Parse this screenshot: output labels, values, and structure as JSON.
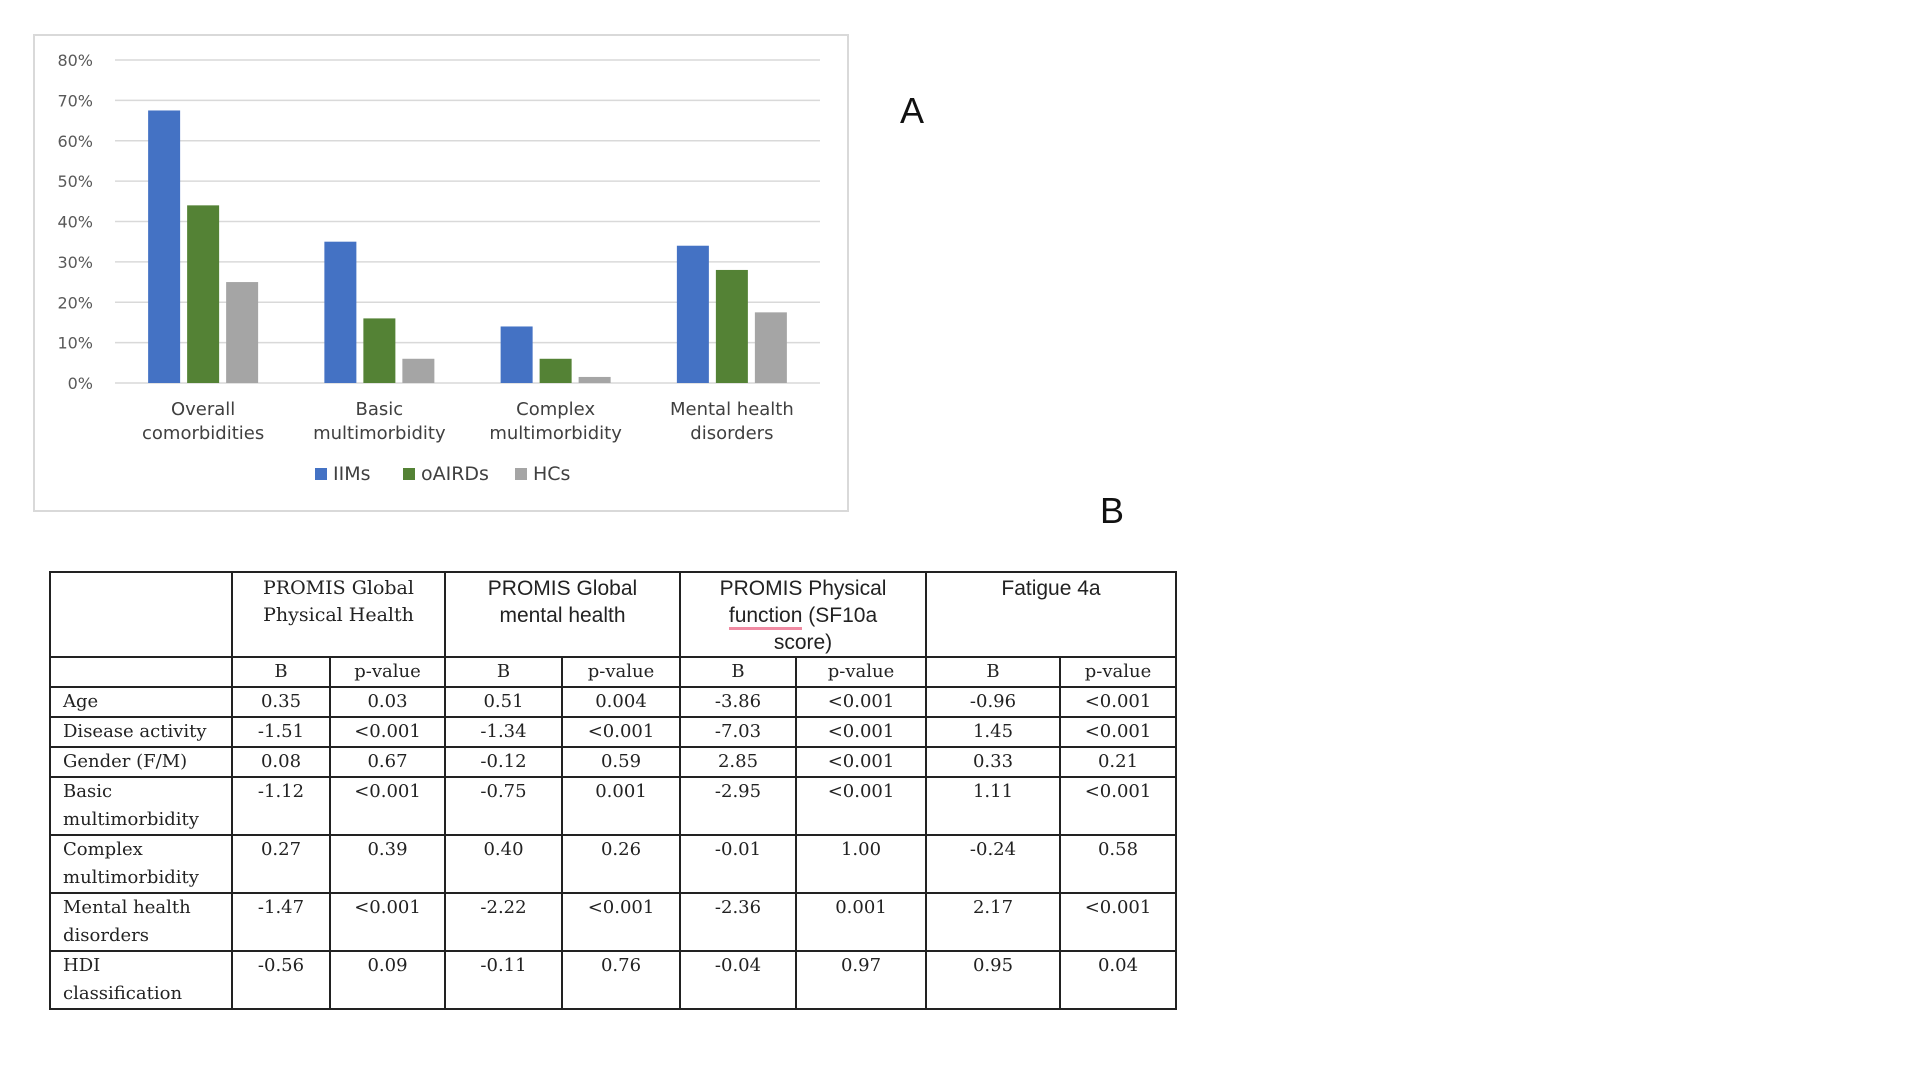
{
  "panel_labels": {
    "a": "A",
    "b": "B"
  },
  "chart_data": {
    "type": "bar",
    "categories": [
      [
        "Overall",
        "comorbidities"
      ],
      [
        "Basic",
        "multimorbidity"
      ],
      [
        "Complex",
        "multimorbidity"
      ],
      [
        "Mental health",
        "disorders"
      ]
    ],
    "series": [
      {
        "name": "IIMs",
        "color": "#4472c4",
        "values": [
          67.5,
          35,
          14,
          34
        ]
      },
      {
        "name": "oAIRDs",
        "color": "#548235",
        "values": [
          44,
          16,
          6,
          28
        ]
      },
      {
        "name": "HCs",
        "color": "#a5a5a5",
        "values": [
          25,
          6,
          1.5,
          17.5
        ]
      }
    ],
    "ylim": [
      0,
      80
    ],
    "yticks": [
      "0%",
      "10%",
      "20%",
      "30%",
      "40%",
      "50%",
      "60%",
      "70%",
      "80%"
    ],
    "grid": true,
    "legend_position": "bottom",
    "title": "",
    "xlabel": "",
    "ylabel": ""
  },
  "table": {
    "headers": [
      "",
      [
        "PROMIS Global",
        "Physical Health"
      ],
      [
        "PROMIS Global",
        "mental health"
      ],
      [
        "PROMIS Physical",
        "function (SF10a",
        "score)"
      ],
      [
        "Fatigue 4a"
      ]
    ],
    "subheaders": [
      "B",
      "p-value",
      "B",
      "p-value",
      "B",
      "p-value",
      "B",
      "p-value"
    ],
    "rows": [
      {
        "label": [
          "Age"
        ],
        "values": [
          "0.35",
          "0.03",
          "0.51",
          "0.004",
          "-3.86",
          "<0.001",
          "-0.96",
          "<0.001"
        ]
      },
      {
        "label": [
          "Disease activity"
        ],
        "values": [
          "-1.51",
          "<0.001",
          "-1.34",
          "<0.001",
          "-7.03",
          "<0.001",
          "1.45",
          "<0.001"
        ]
      },
      {
        "label": [
          "Gender (F/M)"
        ],
        "values": [
          "0.08",
          "0.67",
          "-0.12",
          "0.59",
          "2.85",
          "<0.001",
          "0.33",
          "0.21"
        ]
      },
      {
        "label": [
          "Basic",
          "multimorbidity"
        ],
        "values": [
          "-1.12",
          "<0.001",
          "-0.75",
          "0.001",
          "-2.95",
          "<0.001",
          "1.11",
          "<0.001"
        ]
      },
      {
        "label": [
          "Complex",
          "multimorbidity"
        ],
        "values": [
          "0.27",
          "0.39",
          "0.40",
          "0.26",
          "-0.01",
          "1.00",
          "-0.24",
          "0.58"
        ]
      },
      {
        "label": [
          "Mental health",
          "disorders"
        ],
        "values": [
          "-1.47",
          "<0.001",
          "-2.22",
          "<0.001",
          "-2.36",
          "0.001",
          "2.17",
          "<0.001"
        ]
      },
      {
        "label": [
          "HDI",
          "classification"
        ],
        "values": [
          "-0.56",
          "0.09",
          "-0.11",
          "0.76",
          "-0.04",
          "0.97",
          "0.95",
          "0.04"
        ]
      }
    ]
  }
}
